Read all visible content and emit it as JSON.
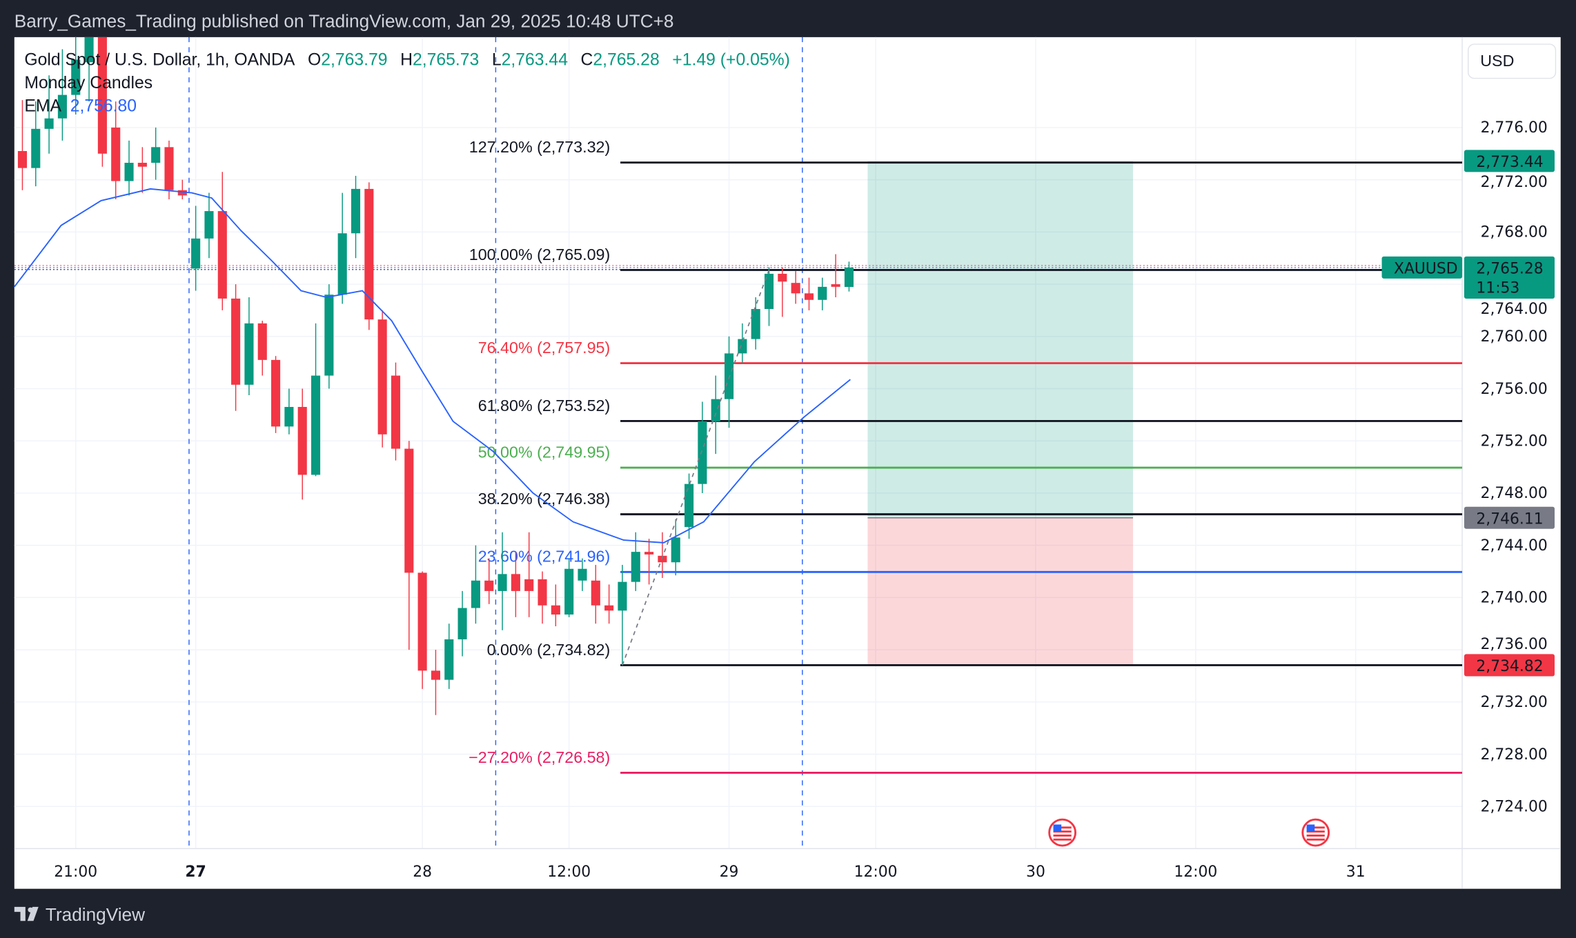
{
  "header": {
    "published": "Barry_Games_Trading published on TradingView.com, Jan 29, 2025 10:48 UTC+8"
  },
  "legend": {
    "symbol": "Gold Spot / U.S. Dollar, 1h, OANDA",
    "o_label": "O",
    "o": "2,763.79",
    "h_label": "H",
    "h": "2,765.73",
    "l_label": "L",
    "l": "2,763.44",
    "c_label": "C",
    "c": "2,765.28",
    "change": "+1.49 (+0.05%)",
    "indicator1": "Monday Candles",
    "ema_label": "EMA",
    "ema_value": "2,756.80"
  },
  "currency_button": "USD",
  "footer": {
    "brand": "TradingView"
  },
  "colors": {
    "up": "#089981",
    "down": "#f23645",
    "ema": "#2962ff",
    "fib_red": "#f23645",
    "fib_green": "#4caf50",
    "fib_blue": "#2962ff",
    "fib_pink": "#e91e63",
    "target": "#089981",
    "stop": "#f23645",
    "entry": "#787b86"
  },
  "chart_data": {
    "type": "candlestick",
    "symbol": "XAUUSD",
    "ylim": [
      2722,
      2783
    ],
    "yticks": [
      "2,724.00",
      "2,728.00",
      "2,732.00",
      "2,736.00",
      "2,740.00",
      "2,744.00",
      "2,748.00",
      "2,752.00",
      "2,756.00",
      "2,760.00",
      "2,764.00",
      "2,768.00",
      "2,772.00",
      "2,776.00"
    ],
    "ytick_values": [
      2724,
      2728,
      2732,
      2736,
      2740,
      2744,
      2748,
      2752,
      2756,
      2760,
      2764,
      2768,
      2772,
      2776
    ],
    "xticks": [
      {
        "label": "21:00",
        "index": 4,
        "bold": false
      },
      {
        "label": "27",
        "index": 13,
        "bold": true
      },
      {
        "label": "28",
        "index": 30,
        "bold": false
      },
      {
        "label": "12:00",
        "index": 41,
        "bold": false
      },
      {
        "label": "29",
        "index": 53,
        "bold": false
      },
      {
        "label": "12:00",
        "index": 64,
        "bold": false
      },
      {
        "label": "30",
        "index": 76,
        "bold": false
      },
      {
        "label": "12:00",
        "index": 88,
        "bold": false
      },
      {
        "label": "31",
        "index": 100,
        "bold": false
      }
    ],
    "session_breaks": [
      12.5,
      35.5,
      58.5
    ],
    "candles_ohlc": [
      [
        2774.2,
        2778.1,
        2771.2,
        2772.9
      ],
      [
        2772.9,
        2778,
        2771.5,
        2775.9
      ],
      [
        2775.9,
        2780,
        2774,
        2776.7
      ],
      [
        2776.7,
        2782,
        2775,
        2778.5
      ],
      [
        2778.5,
        2784,
        2777,
        2781.2
      ],
      [
        2781,
        2786,
        2778,
        2783.5
      ],
      [
        2783.5,
        2786,
        2773,
        2774
      ],
      [
        2776,
        2778,
        2770.5,
        2771.9
      ],
      [
        2771.9,
        2775,
        2770.8,
        2773.3
      ],
      [
        2773.3,
        2774.5,
        2771,
        2773
      ],
      [
        2773.3,
        2776,
        2772,
        2774.5
      ],
      [
        2774.5,
        2775,
        2770.5,
        2771.2
      ],
      [
        2771.2,
        2772,
        2770.5,
        2770.8
      ],
      [
        2765.2,
        2770,
        2763.5,
        2767.5
      ],
      [
        2767.5,
        2771,
        2766,
        2769.6
      ],
      [
        2769.6,
        2772.6,
        2762,
        2762.9
      ],
      [
        2762.9,
        2764,
        2754.3,
        2756.3
      ],
      [
        2756.3,
        2763,
        2755.5,
        2761
      ],
      [
        2761,
        2761.2,
        2757,
        2758.2
      ],
      [
        2758.2,
        2758.5,
        2752.6,
        2753.1
      ],
      [
        2753.1,
        2756,
        2752.5,
        2754.6
      ],
      [
        2754.6,
        2756,
        2747.5,
        2749.4
      ],
      [
        2749.4,
        2761,
        2749.3,
        2757
      ],
      [
        2757,
        2764,
        2756,
        2763.2
      ],
      [
        2763.2,
        2771,
        2762.5,
        2767.9
      ],
      [
        2767.9,
        2772.3,
        2766,
        2771.3
      ],
      [
        2771.3,
        2771.8,
        2760.5,
        2761.3
      ],
      [
        2761.3,
        2762,
        2751.5,
        2752.5
      ],
      [
        2757,
        2758,
        2750.5,
        2751.4
      ],
      [
        2751.4,
        2752,
        2736,
        2741.9
      ],
      [
        2741.9,
        2742,
        2733,
        2734.4
      ],
      [
        2734.4,
        2736,
        2731,
        2733.7
      ],
      [
        2733.7,
        2738,
        2733,
        2736.8
      ],
      [
        2736.8,
        2740.5,
        2735.5,
        2739.2
      ],
      [
        2739.2,
        2744,
        2738,
        2741.3
      ],
      [
        2741.3,
        2743,
        2739.5,
        2740.5
      ],
      [
        2740.5,
        2745,
        2737.5,
        2741.8
      ],
      [
        2741.8,
        2743.5,
        2738.5,
        2740.5
      ],
      [
        2741.4,
        2745,
        2738.5,
        2740.5
      ],
      [
        2741.4,
        2742,
        2738,
        2739.4
      ],
      [
        2739.4,
        2741,
        2737.8,
        2738.7
      ],
      [
        2738.7,
        2743,
        2738.5,
        2742.2
      ],
      [
        2741.3,
        2743,
        2740.5,
        2742.2
      ],
      [
        2741.3,
        2742.5,
        2738,
        2739.4
      ],
      [
        2739.4,
        2741,
        2738,
        2739
      ],
      [
        2739,
        2742.5,
        2734.82,
        2741.2
      ],
      [
        2741.2,
        2745,
        2740.5,
        2743.5
      ],
      [
        2743.5,
        2744.5,
        2741,
        2743.3
      ],
      [
        2743.2,
        2745,
        2741.5,
        2742.7
      ],
      [
        2742.7,
        2746,
        2741.7,
        2744.6
      ],
      [
        2745.4,
        2749.5,
        2744.5,
        2748.7
      ],
      [
        2748.7,
        2755,
        2748,
        2753.5
      ],
      [
        2753.5,
        2757,
        2751,
        2755.2
      ],
      [
        2755.2,
        2760,
        2753,
        2758.7
      ],
      [
        2758.7,
        2761,
        2758,
        2759.8
      ],
      [
        2759.8,
        2763,
        2759,
        2762.1
      ],
      [
        2762.1,
        2765.3,
        2760.8,
        2764.8
      ],
      [
        2764.8,
        2765.3,
        2761.5,
        2764.2
      ],
      [
        2764.1,
        2765,
        2762.5,
        2763.3
      ],
      [
        2763.3,
        2764.5,
        2762,
        2762.8
      ],
      [
        2762.8,
        2764.5,
        2762,
        2763.8
      ],
      [
        2764,
        2766.3,
        2763,
        2763.8
      ],
      [
        2763.79,
        2765.73,
        2763.44,
        2765.28
      ]
    ],
    "ema_points": [
      [
        -0.6,
        2763.8
      ],
      [
        2.9,
        2768.5
      ],
      [
        5.9,
        2770.4
      ],
      [
        9.6,
        2771.3
      ],
      [
        12.7,
        2771
      ],
      [
        14.2,
        2770.6
      ],
      [
        16.4,
        2768.1
      ],
      [
        18.7,
        2765.8
      ],
      [
        20.9,
        2763.5
      ],
      [
        22.8,
        2763
      ],
      [
        25.5,
        2763.5
      ],
      [
        27.7,
        2761.2
      ],
      [
        30,
        2757.3
      ],
      [
        32.3,
        2753.5
      ],
      [
        35.3,
        2751.2
      ],
      [
        38.3,
        2748
      ],
      [
        41.3,
        2745.8
      ],
      [
        45.1,
        2744.4
      ],
      [
        48.1,
        2744.2
      ],
      [
        51.1,
        2745.8
      ],
      [
        54.9,
        2750.4
      ],
      [
        58.6,
        2753.8
      ],
      [
        62.1,
        2756.7
      ]
    ],
    "fib_levels": [
      {
        "label": "127.20% (2,773.32)",
        "price": 2773.32,
        "color": "#131722"
      },
      {
        "label": "100.00% (2,765.09)",
        "price": 2765.09,
        "color": "#131722"
      },
      {
        "label": "76.40% (2,757.95)",
        "price": 2757.95,
        "color": "#f23645"
      },
      {
        "label": "61.80% (2,753.52)",
        "price": 2753.52,
        "color": "#131722"
      },
      {
        "label": "50.00% (2,749.95)",
        "price": 2749.95,
        "color": "#4caf50"
      },
      {
        "label": "38.20% (2,746.38)",
        "price": 2746.38,
        "color": "#131722"
      },
      {
        "label": "23.60% (2,741.96)",
        "price": 2741.96,
        "color": "#2962ff"
      },
      {
        "label": "0.00% (2,734.82)",
        "price": 2734.82,
        "color": "#131722"
      },
      {
        "label": "−27.20% (2,726.58)",
        "price": 2726.58,
        "color": "#e91e63"
      }
    ],
    "fib_start_index": 45,
    "trend_line": {
      "from": [
        45,
        2734.82
      ],
      "to": [
        56,
        2765.09
      ]
    },
    "position": {
      "start_index": 64,
      "end_index": 83,
      "target": 2773.44,
      "entry": 2746.11,
      "stop": 2734.82
    },
    "price_labels": {
      "target": "2,773.44",
      "entry": "2,746.11",
      "stop": "2,734.82",
      "last": "2,765.28",
      "countdown": "11:53",
      "symbol_tag": "XAUUSD"
    },
    "last_price": 2765.28,
    "event_markers": [
      {
        "type": "us-flag",
        "index": 78
      },
      {
        "type": "us-flag",
        "index": 97
      }
    ]
  }
}
